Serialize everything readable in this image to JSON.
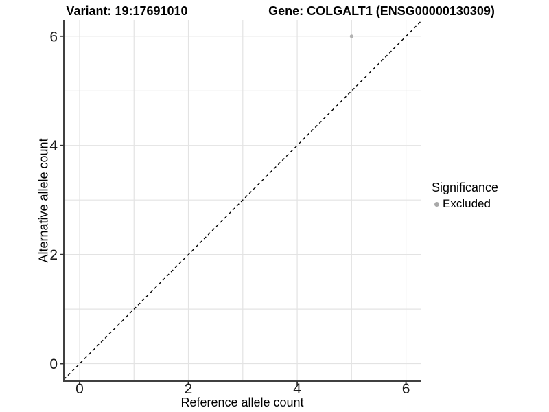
{
  "chart_data": {
    "type": "scatter",
    "titles": [
      "Variant: 19:17691010",
      "Gene: COLGALT1 (ENSG00000130309)"
    ],
    "xlabel": "Reference allele count",
    "ylabel": "Alternative allele count",
    "xlim": [
      -0.29,
      6.27
    ],
    "ylim": [
      -0.32,
      6.3
    ],
    "x_ticks": [
      0,
      2,
      4,
      6
    ],
    "y_ticks": [
      0,
      2,
      4,
      6
    ],
    "grid_x": [
      0,
      1,
      2,
      3,
      4,
      5,
      6
    ],
    "grid_y": [
      0,
      1,
      2,
      3,
      4,
      5,
      6
    ],
    "grid": true,
    "legend_position": "right",
    "legend": {
      "title": "Significance",
      "items": [
        {
          "label": "Excluded",
          "color": "#a9a9a9"
        }
      ]
    },
    "series": [
      {
        "name": "Excluded",
        "color": "#b2b2b2",
        "point_radius": 2.6,
        "points": [
          {
            "x": 5,
            "y": 6
          }
        ]
      }
    ],
    "reference_line": {
      "type": "identity",
      "slope": 1,
      "intercept": 0,
      "style": "dashed",
      "color": "#000000"
    },
    "colors": {
      "background": "#ffffff",
      "gridline": "#e3e3e3",
      "axis_line": "#404040",
      "tick_mark": "#333333",
      "tick_text": "#1a1a1a"
    }
  }
}
